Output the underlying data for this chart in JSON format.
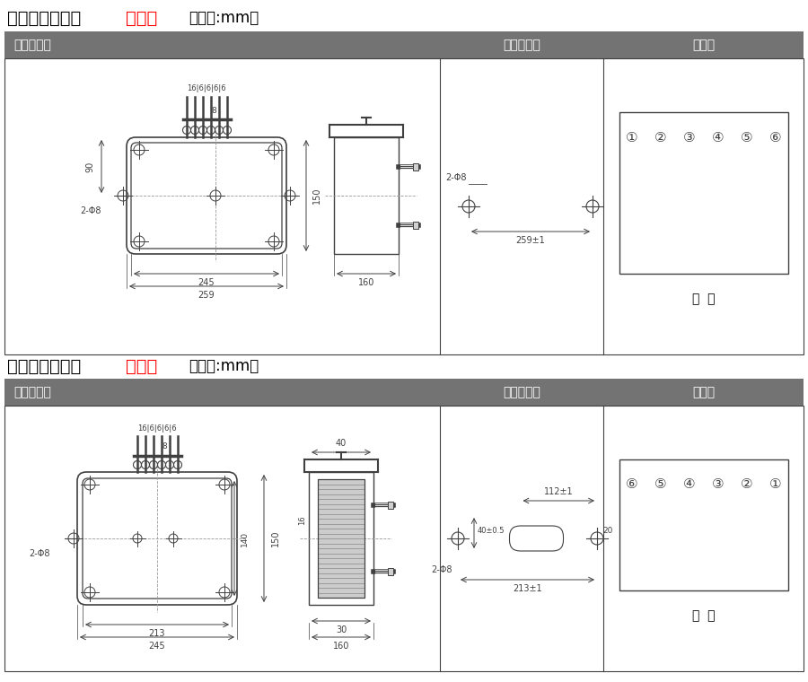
{
  "title1_black": "单相过流凸出式",
  "title1_red": "前接线",
  "title1_suffix": "（单位:mm）",
  "title2_black": "单相过流凸出式",
  "title2_red": "后接线",
  "title2_suffix": "（单位:mm）",
  "header_bg": "#737373",
  "header1": "外形尺寸图",
  "header2": "安装开孔图",
  "header3": "端子图",
  "red_color": "#ff0000",
  "lc": "#404040",
  "dc": "#404040",
  "div1": 0.545,
  "div2": 0.748
}
